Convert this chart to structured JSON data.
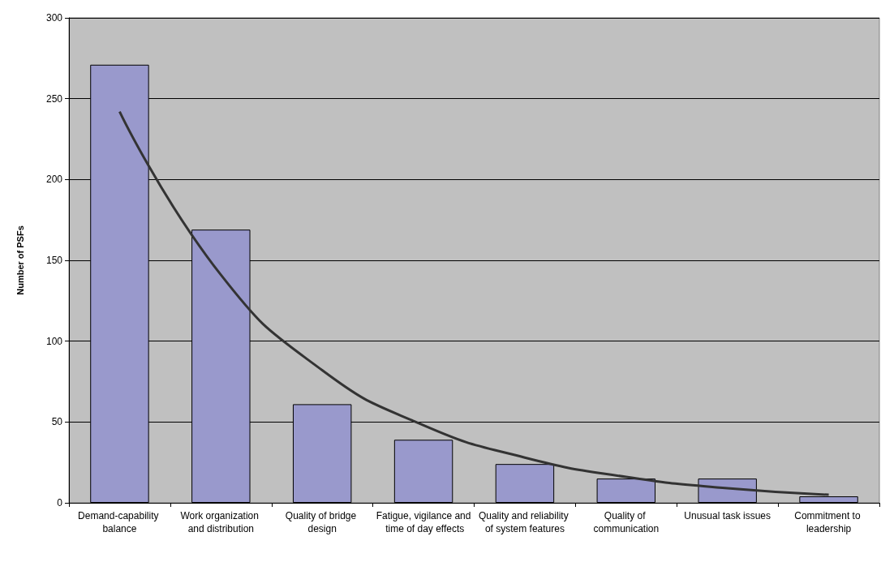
{
  "chart_data": {
    "type": "bar",
    "ylabel": "Number of PSFs",
    "categories": [
      "Demand-capability balance",
      "Work organization and distribution",
      "Quality of bridge design",
      "Fatigue, vigilance and time of day effects",
      "Quality and reliability of system features",
      "Quality of communication",
      "Unusual task issues",
      "Commitment to leadership"
    ],
    "series": [
      {
        "color": "#9999cc",
        "values": [
          271,
          169,
          61,
          39,
          24,
          15,
          15,
          4
        ]
      },
      {
        "type": "line",
        "color": "#333333",
        "marker": "none",
        "x": [
          "Demand-capability balance",
          "Work organization and distribution",
          "Quality of bridge design",
          "Fatigue, vigilance and time of day effects",
          "Quality and reliability of system features",
          "Quality of communication",
          "Unusual task issues",
          "Commitment to leadership"
        ],
        "values": [
          242,
          141,
          82,
          48,
          28,
          16,
          9,
          5
        ]
      }
    ],
    "ylim": [
      0,
      300
    ],
    "yticks": [
      0,
      50,
      100,
      150,
      200,
      250,
      300
    ],
    "grid": "y"
  }
}
